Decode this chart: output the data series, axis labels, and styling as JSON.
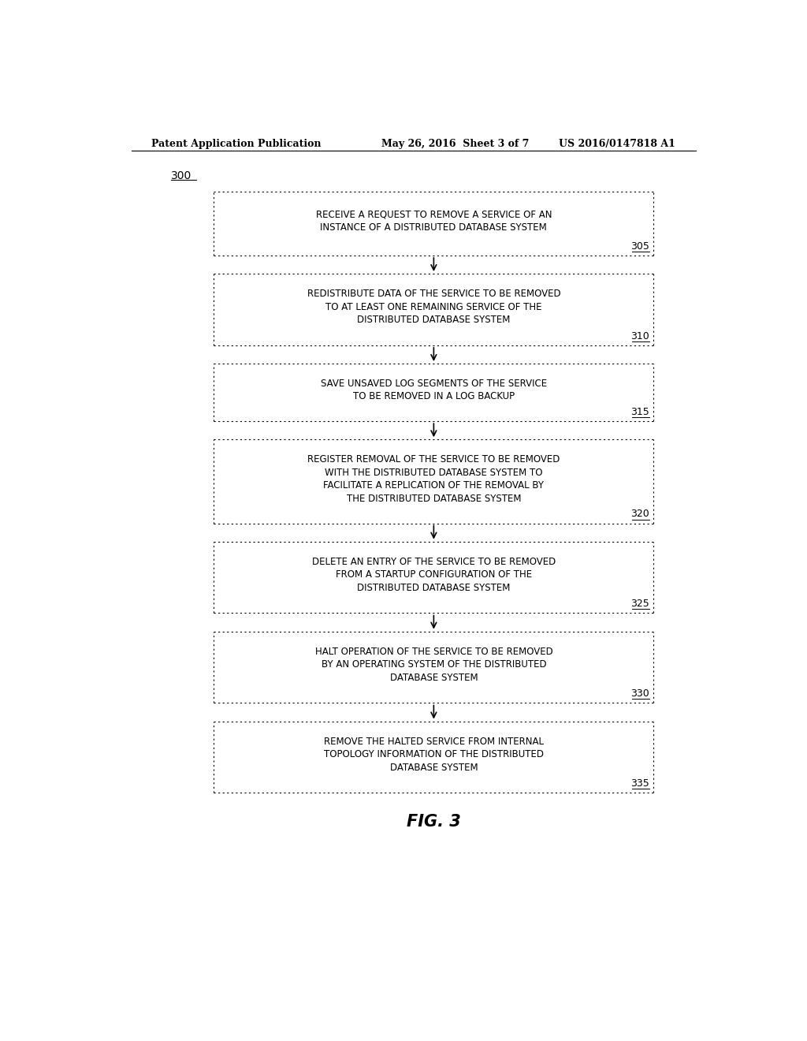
{
  "bg_color": "#ffffff",
  "header_left": "Patent Application Publication",
  "header_center": "May 26, 2016  Sheet 3 of 7",
  "header_right": "US 2016/0147818 A1",
  "fig_label": "FIG. 3",
  "diagram_label": "300",
  "boxes": [
    {
      "label": "305",
      "lines": [
        "RECEIVE A REQUEST TO REMOVE A SERVICE OF AN",
        "INSTANCE OF A DISTRIBUTED DATABASE SYSTEM"
      ]
    },
    {
      "label": "310",
      "lines": [
        "REDISTRIBUTE DATA OF THE SERVICE TO BE REMOVED",
        "TO AT LEAST ONE REMAINING SERVICE OF THE",
        "DISTRIBUTED DATABASE SYSTEM"
      ]
    },
    {
      "label": "315",
      "lines": [
        "SAVE UNSAVED LOG SEGMENTS OF THE SERVICE",
        "TO BE REMOVED IN A LOG BACKUP"
      ]
    },
    {
      "label": "320",
      "lines": [
        "REGISTER REMOVAL OF THE SERVICE TO BE REMOVED",
        "WITH THE DISTRIBUTED DATABASE SYSTEM TO",
        "FACILITATE A REPLICATION OF THE REMOVAL BY",
        "THE DISTRIBUTED DATABASE SYSTEM"
      ]
    },
    {
      "label": "325",
      "lines": [
        "DELETE AN ENTRY OF THE SERVICE TO BE REMOVED",
        "FROM A STARTUP CONFIGURATION OF THE",
        "DISTRIBUTED DATABASE SYSTEM"
      ]
    },
    {
      "label": "330",
      "lines": [
        "HALT OPERATION OF THE SERVICE TO BE REMOVED",
        "BY AN OPERATING SYSTEM OF THE DISTRIBUTED",
        "DATABASE SYSTEM"
      ]
    },
    {
      "label": "335",
      "lines": [
        "REMOVE THE HALTED SERVICE FROM INTERNAL",
        "TOPOLOGY INFORMATION OF THE DISTRIBUTED",
        "DATABASE SYSTEM"
      ]
    }
  ]
}
